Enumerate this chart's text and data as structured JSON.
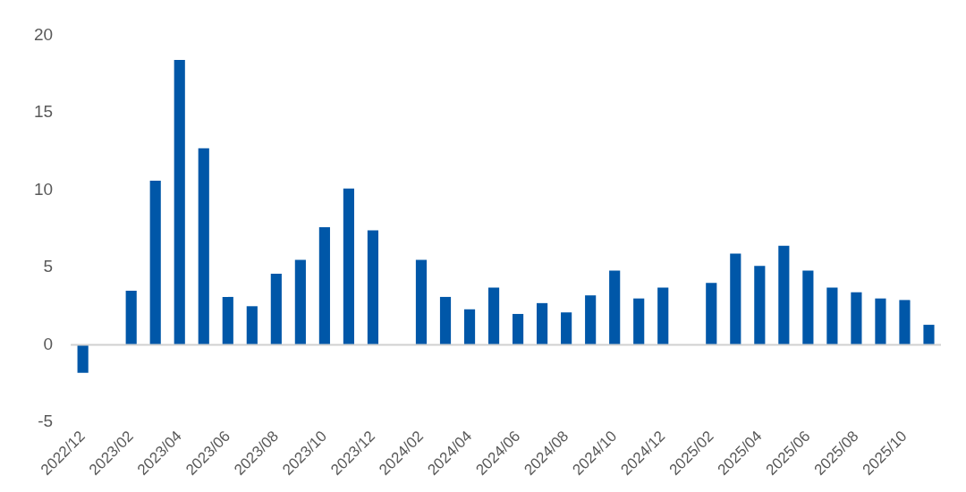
{
  "chart_data": {
    "type": "bar",
    "categories": [
      "2022/12",
      null,
      "2023/02",
      null,
      "2023/04",
      null,
      "2023/06",
      null,
      "2023/08",
      null,
      "2023/10",
      null,
      "2023/12",
      null,
      "2024/02",
      null,
      "2024/04",
      null,
      "2024/06",
      null,
      "2024/08",
      null,
      "2024/10",
      null,
      "2024/12",
      null,
      "2025/02",
      null,
      "2025/04",
      null,
      "2025/06",
      null,
      "2025/08",
      null,
      "2025/10",
      null
    ],
    "values": [
      -1.8,
      null,
      3.5,
      10.6,
      18.4,
      12.7,
      3.1,
      2.5,
      4.6,
      5.5,
      7.6,
      10.1,
      7.4,
      null,
      5.5,
      3.1,
      2.3,
      3.7,
      2.0,
      2.7,
      2.1,
      3.2,
      4.8,
      3.0,
      3.7,
      null,
      4.0,
      5.9,
      5.1,
      6.4,
      4.8,
      3.7,
      3.4,
      3.0,
      2.9,
      1.3
    ],
    "color": "#0057a8",
    "ylim": [
      -5,
      20
    ],
    "yticks": [
      -5,
      0,
      5,
      10,
      15,
      20
    ],
    "grid": false,
    "ref_lines": [
      {
        "axis": "y",
        "value": 0,
        "color": "#d0d0d0"
      }
    ],
    "legend": false
  }
}
